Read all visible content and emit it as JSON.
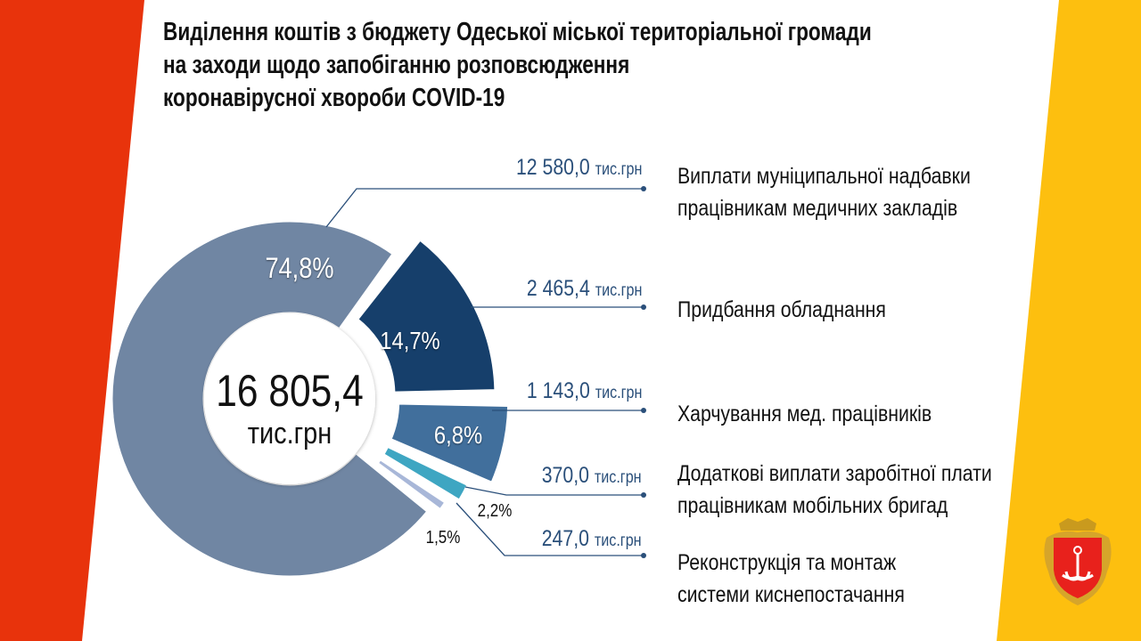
{
  "title": {
    "lines": [
      "Виділення коштів з бюджету Одеської міської територіальної громади",
      "на заходи щодо запобіганню розповсюдження",
      "коронавірусної хвороби COVID-19"
    ]
  },
  "colors": {
    "red": "#e8330c",
    "yellow": "#fdbf0f",
    "line": "#2a4f7a"
  },
  "chart_data": {
    "type": "pie",
    "style": "donut",
    "total": "16 805,4",
    "total_unit": "тис.грн",
    "unit": "тис.грн",
    "slices": [
      {
        "pct": 74.8,
        "pct_label": "74,8%",
        "amount": "12 580,0",
        "value": 12580.0,
        "label_lines": [
          "Виплати муніципальної надбавки",
          "працівникам медичних закладів"
        ],
        "color": "#7086a3"
      },
      {
        "pct": 14.7,
        "pct_label": "14,7%",
        "amount": "2 465,4",
        "value": 2465.4,
        "label_lines": [
          "Придбання обладнання"
        ],
        "color": "#163f6b"
      },
      {
        "pct": 6.8,
        "pct_label": "6,8%",
        "amount": "1 143,0",
        "value": 1143.0,
        "label_lines": [
          "Харчування мед. працівників"
        ],
        "color": "#416f9c"
      },
      {
        "pct": 2.2,
        "pct_label": "2,2%",
        "amount": "370,0",
        "value": 370.0,
        "label_lines": [
          "Додаткові виплати заробітної плати",
          "працівникам мобільних бригад"
        ],
        "color": "#3ea6c2"
      },
      {
        "pct": 1.5,
        "pct_label": "1,5%",
        "amount": "247,0",
        "value": 247.0,
        "label_lines": [
          "Реконструкція та монтаж",
          "системи киснепостачання"
        ],
        "color": "#a8b7d8"
      }
    ]
  }
}
